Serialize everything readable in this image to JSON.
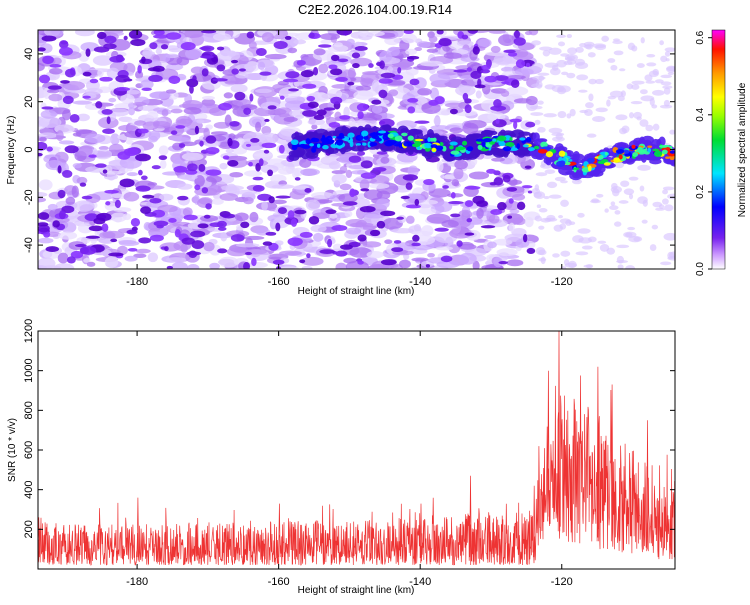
{
  "title": "C2E2.2026.104.00.19.R14",
  "chart_data": [
    {
      "type": "heatmap",
      "title": "C2E2.2026.104.00.19.R14",
      "xlabel": "Height of straight line (km)",
      "ylabel": "Frequency (Hz)",
      "xlim": [
        -194,
        -104
      ],
      "ylim": [
        -50,
        50
      ],
      "x_ticks": [
        -180,
        -160,
        -140,
        -120
      ],
      "x_tick_labels": [
        "-180",
        "-160",
        "-140",
        "-120"
      ],
      "y_ticks": [
        -40,
        -20,
        0,
        20,
        40
      ],
      "y_tick_labels": [
        "-40",
        "-20",
        "0",
        "20",
        "40"
      ],
      "noise_region_end_km": -124,
      "signal_ridge": {
        "start_km": -158,
        "end_km": -104,
        "frequency_points": [
          [
            -158,
            1
          ],
          [
            -150,
            4
          ],
          [
            -145,
            5
          ],
          [
            -140,
            3
          ],
          [
            -135,
            0
          ],
          [
            -130,
            3
          ],
          [
            -124,
            2
          ],
          [
            -120,
            -4
          ],
          [
            -117,
            -8
          ],
          [
            -113,
            -3
          ],
          [
            -109,
            0
          ],
          [
            -105,
            -1
          ]
        ]
      },
      "colorbar": {
        "label": "Normalized spectral amplitude",
        "range": [
          0.0,
          0.62
        ],
        "ticks": [
          0.0,
          0.2,
          0.4,
          0.6
        ],
        "tick_labels": [
          "0.0",
          "0.2",
          "0.4",
          "0.6"
        ]
      }
    },
    {
      "type": "line",
      "title": "",
      "xlabel": "Height of straight line (km)",
      "ylabel": "SNR (10 * v/v)",
      "xlim": [
        -194,
        -104
      ],
      "ylim": [
        0,
        1200
      ],
      "x_ticks": [
        -180,
        -160,
        -140,
        -120
      ],
      "x_tick_labels": [
        "-180",
        "-160",
        "-140",
        "-120"
      ],
      "y_ticks": [
        200,
        400,
        600,
        800,
        1000,
        1200
      ],
      "y_tick_labels": [
        "200",
        "400",
        "600",
        "800",
        "1000",
        "1200"
      ],
      "color": "#ee3333",
      "series_envelope": [
        {
          "x": -194,
          "low": 20,
          "typical_high": 230,
          "peak": 260
        },
        {
          "x": -180,
          "low": 20,
          "typical_high": 230,
          "peak": 360
        },
        {
          "x": -160,
          "low": 20,
          "typical_high": 240,
          "peak": 330
        },
        {
          "x": -140,
          "low": 20,
          "typical_high": 260,
          "peak": 330
        },
        {
          "x": -133,
          "low": 20,
          "typical_high": 280,
          "peak": 470
        },
        {
          "x": -124,
          "low": 20,
          "typical_high": 300,
          "peak": 420
        },
        {
          "x": -122,
          "low": 200,
          "typical_high": 800,
          "peak": 1000
        },
        {
          "x": -120.5,
          "low": 150,
          "typical_high": 900,
          "peak": 1200
        },
        {
          "x": -115,
          "low": 100,
          "typical_high": 800,
          "peak": 1020
        },
        {
          "x": -113,
          "low": 100,
          "typical_high": 700,
          "peak": 930
        },
        {
          "x": -108,
          "low": 50,
          "typical_high": 550,
          "peak": 750
        },
        {
          "x": -104,
          "low": 50,
          "typical_high": 500,
          "peak": 760
        }
      ]
    }
  ]
}
